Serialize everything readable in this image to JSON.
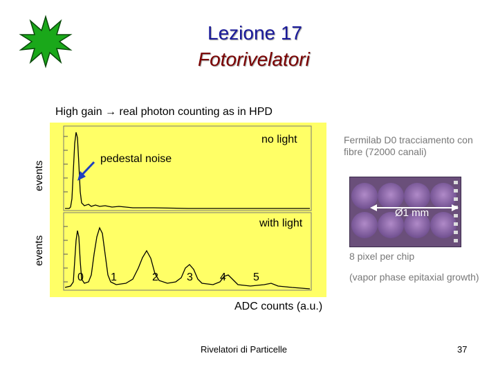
{
  "slide": {
    "title_line1": "Lezione 17",
    "title_line2": "Fotorivelatori",
    "subtitle": "High gain → real photon counting as in HPD",
    "footer": "Rivelatori di Particelle",
    "page_number": "37"
  },
  "plot": {
    "ylabel_top": "events",
    "ylabel_bottom": "events",
    "xlabel": "ADC counts (a.u.)",
    "label_no_light": "no light",
    "label_pedestal": "pedestal noise",
    "label_with_light": "with light",
    "peak_labels": [
      "0",
      "1",
      "2",
      "3",
      "4",
      "5"
    ],
    "background_color": "#ffff66"
  },
  "fermilab": {
    "caption": "Fermilab D0 tracciamento con fibre (72000 canali)",
    "diameter_label": "Ø1 mm",
    "pixel_label": "8 pixel per chip",
    "process_label": "(vapor phase epitaxial growth)"
  },
  "colors": {
    "title1": "#1a1a99",
    "title2": "#7a0000",
    "starburst": "#1aa81a",
    "arrow": "#1f3fbf"
  }
}
